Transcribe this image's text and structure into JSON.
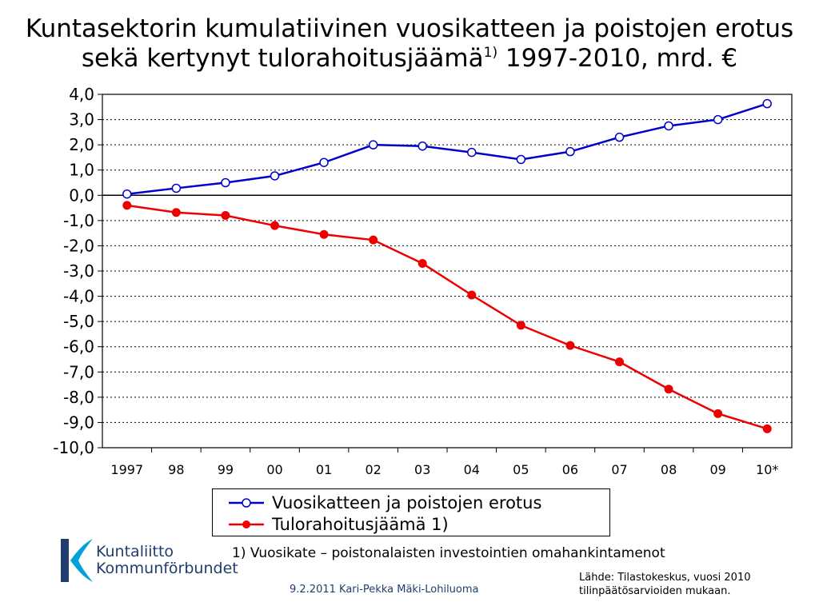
{
  "title": {
    "line1": "Kuntasektorin kumulatiivinen vuosikatteen ja poistojen erotus",
    "line2_before": "sekä kertynyt tulorahoitusjäämä",
    "line2_sup": "1)",
    "line2_after": " 1997-2010, mrd. €"
  },
  "footnote": "1) Vuosikate – poistonalaisten investointien omahankintamenot",
  "logo": {
    "line1": "Kuntaliitto",
    "line2": "Kommunförbundet"
  },
  "author": "9.2.2011 Kari-Pekka Mäki-Lohiluoma",
  "source": {
    "line1": "Lähde: Tilastokeskus, vuosi 2010",
    "line2": "tilinpäätösarvioiden mukaan."
  },
  "colors": {
    "blue": "#0000cc",
    "red": "#ee0000",
    "logo_cyan": "#00a3d9",
    "logo_navy": "#1f3e6e"
  },
  "chart_data": {
    "type": "line",
    "categories": [
      "1997",
      "98",
      "99",
      "00",
      "01",
      "02",
      "03",
      "04",
      "05",
      "06",
      "07",
      "08",
      "09",
      "10*"
    ],
    "ylim": [
      -10,
      4
    ],
    "yticks": [
      "4,0",
      "3,0",
      "2,0",
      "1,0",
      "0,0",
      "-1,0",
      "-2,0",
      "-3,0",
      "-4,0",
      "-5,0",
      "-6,0",
      "-7,0",
      "-8,0",
      "-9,0",
      "-10,0"
    ],
    "grid": "horizontal-dotted",
    "legend_position": "bottom",
    "series": [
      {
        "name": "Vuosikatteen ja poistojen erotus",
        "color": "#0000cc",
        "marker": "open-circle",
        "values": [
          0.05,
          0.28,
          0.5,
          0.77,
          1.3,
          2.0,
          1.95,
          1.7,
          1.42,
          1.73,
          2.3,
          2.75,
          3.0,
          3.63
        ]
      },
      {
        "name": "Tulorahoitusjäämä 1)",
        "color": "#ee0000",
        "marker": "filled-circle",
        "values": [
          -0.4,
          -0.68,
          -0.8,
          -1.2,
          -1.55,
          -1.77,
          -2.7,
          -3.95,
          -5.15,
          -5.95,
          -6.6,
          -7.68,
          -8.65,
          -9.25
        ]
      }
    ]
  }
}
